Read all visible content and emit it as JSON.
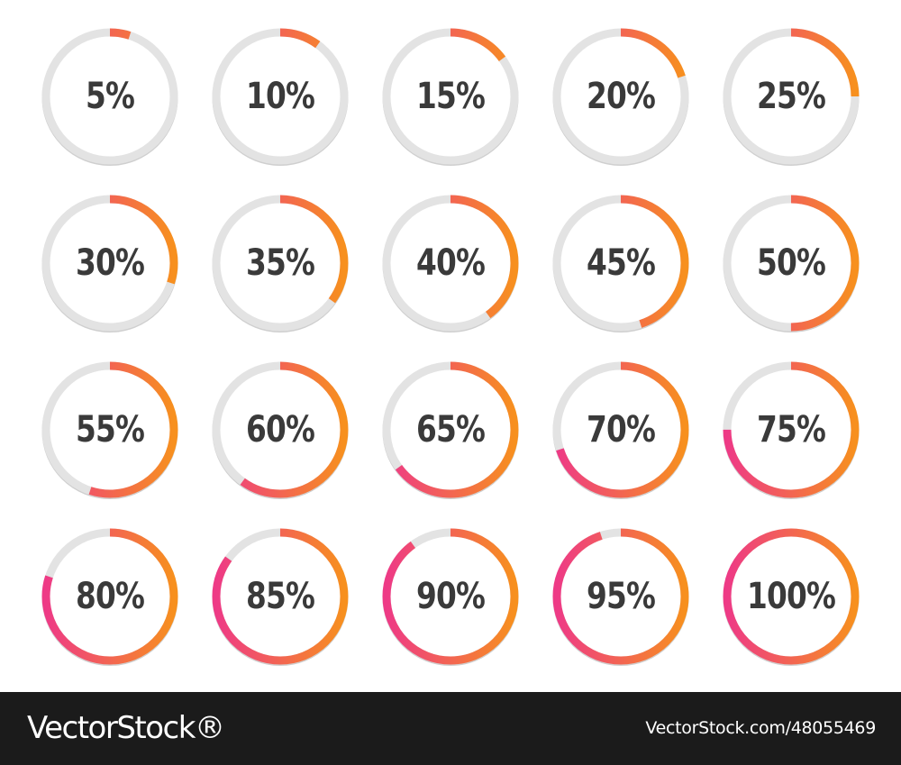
{
  "colors": {
    "track": "#e3e3e3",
    "track_shadow": "#cfcfcf",
    "gradient_start": "#ee3a86",
    "gradient_end": "#f7901e",
    "text": "#3a3a3a",
    "footer_bg": "#1b1b1b",
    "footer_text": "#ffffff"
  },
  "progress_rings": [
    {
      "label": "5%",
      "value": 5
    },
    {
      "label": "10%",
      "value": 10
    },
    {
      "label": "15%",
      "value": 15
    },
    {
      "label": "20%",
      "value": 20
    },
    {
      "label": "25%",
      "value": 25
    },
    {
      "label": "30%",
      "value": 30
    },
    {
      "label": "35%",
      "value": 35
    },
    {
      "label": "40%",
      "value": 40
    },
    {
      "label": "45%",
      "value": 45
    },
    {
      "label": "50%",
      "value": 50
    },
    {
      "label": "55%",
      "value": 55
    },
    {
      "label": "60%",
      "value": 60
    },
    {
      "label": "65%",
      "value": 65
    },
    {
      "label": "70%",
      "value": 70
    },
    {
      "label": "75%",
      "value": 75
    },
    {
      "label": "80%",
      "value": 80
    },
    {
      "label": "85%",
      "value": 85
    },
    {
      "label": "90%",
      "value": 90
    },
    {
      "label": "95%",
      "value": 95
    },
    {
      "label": "100%",
      "value": 100
    }
  ],
  "footer": {
    "brand": "VectorStock®",
    "image_id": "VectorStock.com/48055469"
  }
}
